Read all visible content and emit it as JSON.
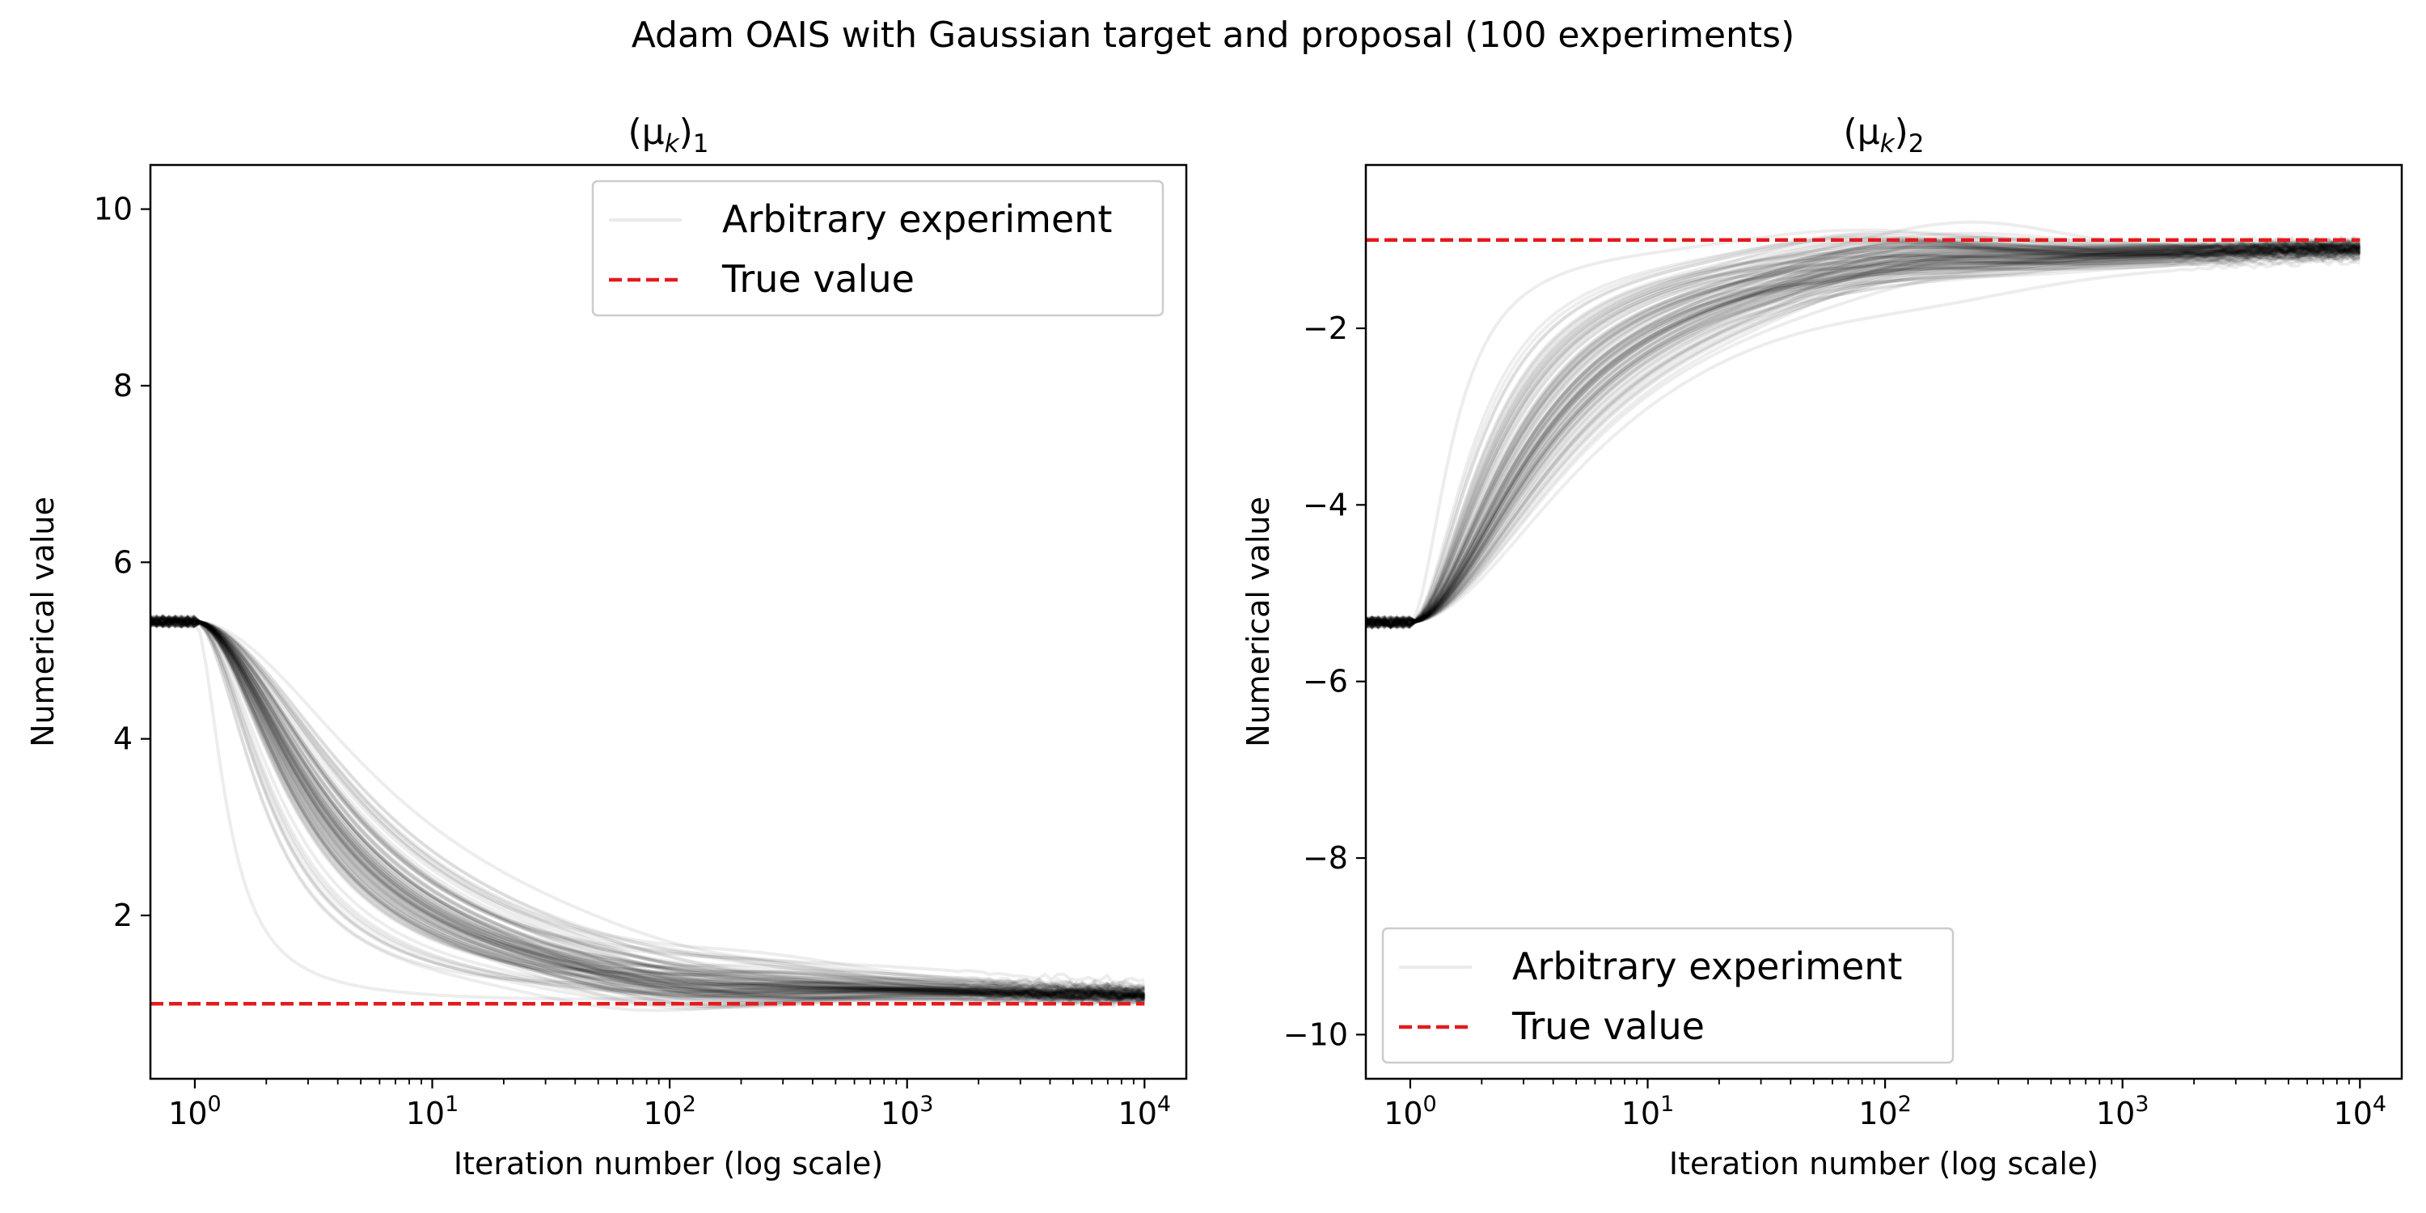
{
  "figure": {
    "suptitle": "Adam OAIS with Gaussian target and proposal (100 experiments)"
  },
  "chart_data": [
    {
      "type": "line",
      "title": "(μ_k)_1",
      "title_base": "(μ",
      "title_sub_k": "k",
      "title_close": ")",
      "title_sub_idx": "1",
      "xlabel": "Iteration number (log scale)",
      "ylabel": "Numerical value",
      "xscale": "log",
      "xlim": [
        0.65,
        15000
      ],
      "ylim": [
        0.15,
        10.5
      ],
      "xtick_values": [
        1,
        10,
        100,
        1000,
        10000
      ],
      "xtick_labels": [
        [
          "10",
          "0"
        ],
        [
          "10",
          "1"
        ],
        [
          "10",
          "2"
        ],
        [
          "10",
          "3"
        ],
        [
          "10",
          "4"
        ]
      ],
      "ytick_values": [
        2,
        4,
        6,
        8,
        10
      ],
      "ytick_labels": [
        "2",
        "4",
        "6",
        "8",
        "10"
      ],
      "grid": false,
      "legend": {
        "location": "top-right",
        "entries": [
          "Arbitrary experiment",
          "True value"
        ]
      },
      "colors": {
        "experiment": "#000000",
        "true_value": "#e41a1c"
      },
      "true_value": 1.0,
      "initial_value": 5.33,
      "iterations": 10000,
      "experiments": 100,
      "series": [
        {
          "name": "Arbitrary experiment",
          "style": "translucent black, 100 runs",
          "x": [
            0.65,
            1,
            2,
            5,
            10,
            20,
            40,
            100,
            300,
            1000,
            3000,
            10000
          ],
          "y": [
            5.33,
            5.33,
            3.9,
            2.1,
            1.4,
            1.1,
            0.95,
            0.93,
            0.96,
            0.99,
            1.0,
            1.0
          ]
        },
        {
          "name": "True value",
          "style": "red dashed",
          "x": [
            0.65,
            10000
          ],
          "y": [
            1.0,
            1.0
          ]
        }
      ]
    },
    {
      "type": "line",
      "title": "(μ_k)_2",
      "title_base": "(μ",
      "title_sub_k": "k",
      "title_close": ")",
      "title_sub_idx": "2",
      "xlabel": "Iteration number (log scale)",
      "ylabel": "Numerical value",
      "xscale": "log",
      "xlim": [
        0.65,
        15000
      ],
      "ylim": [
        -10.5,
        -0.15
      ],
      "xtick_values": [
        1,
        10,
        100,
        1000,
        10000
      ],
      "xtick_labels": [
        [
          "10",
          "0"
        ],
        [
          "10",
          "1"
        ],
        [
          "10",
          "2"
        ],
        [
          "10",
          "3"
        ],
        [
          "10",
          "4"
        ]
      ],
      "ytick_values": [
        -10,
        -8,
        -6,
        -4,
        -2
      ],
      "ytick_labels": [
        "−10",
        "−8",
        "−6",
        "−4",
        "−2"
      ],
      "grid": false,
      "legend": {
        "location": "bottom-left",
        "entries": [
          "Arbitrary experiment",
          "True value"
        ]
      },
      "colors": {
        "experiment": "#000000",
        "true_value": "#e41a1c"
      },
      "true_value": -1.0,
      "initial_value": -5.33,
      "iterations": 10000,
      "experiments": 100,
      "series": [
        {
          "name": "Arbitrary experiment",
          "style": "translucent black, 100 runs",
          "x": [
            0.65,
            1,
            2,
            5,
            10,
            20,
            40,
            100,
            300,
            1000,
            3000,
            10000
          ],
          "y": [
            -5.33,
            -5.33,
            -3.9,
            -2.1,
            -1.4,
            -1.1,
            -0.95,
            -0.93,
            -0.96,
            -0.99,
            -1.0,
            -1.0
          ]
        },
        {
          "name": "True value",
          "style": "red dashed",
          "x": [
            0.65,
            10000
          ],
          "y": [
            -1.0,
            -1.0
          ]
        }
      ]
    }
  ]
}
